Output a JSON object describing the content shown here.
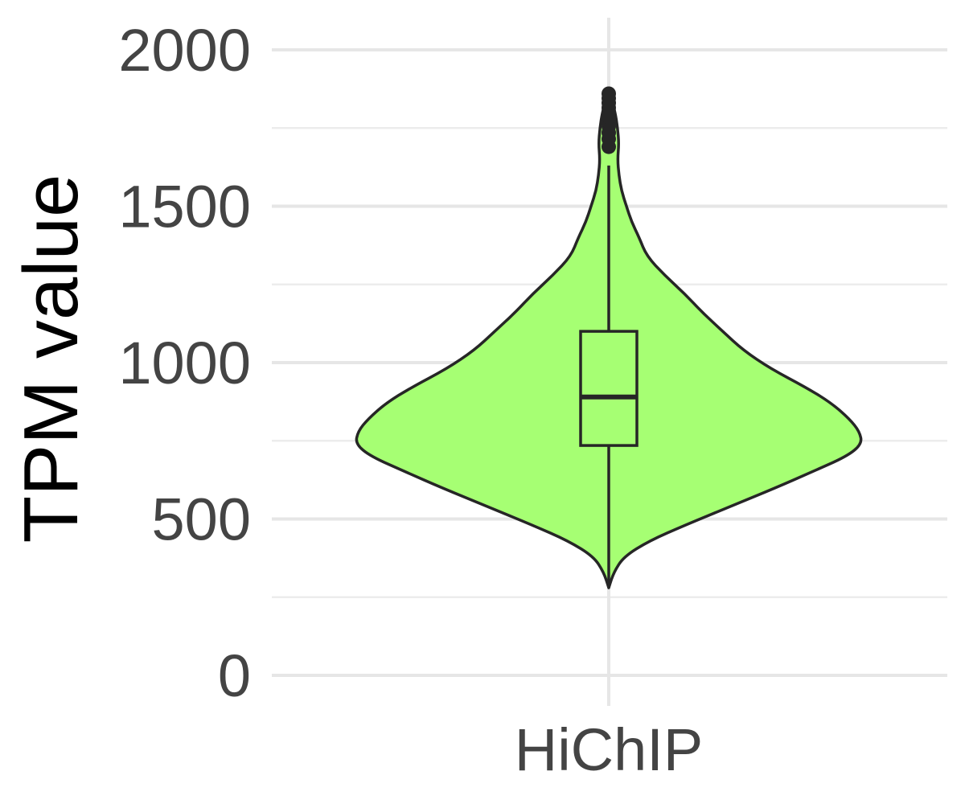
{
  "chart_data": {
    "type": "violin",
    "ylabel": "TPM value",
    "xlabel": "",
    "categories": [
      "HiChIP"
    ],
    "ylim": [
      -40,
      2100
    ],
    "y_ticks": [
      0,
      500,
      1000,
      1500,
      2000
    ],
    "y_tick_labels": [
      "0",
      "500",
      "1000",
      "1500",
      "2000"
    ],
    "grid": true,
    "legend": "none",
    "colors": {
      "fill": "#a6ff73",
      "outline": "#262626",
      "grid": "#e6e6e6"
    },
    "series": [
      {
        "category": "HiChIP",
        "min": 280,
        "max": 1860,
        "box": {
          "lower_whisker": 280,
          "q1": 735,
          "median": 890,
          "q3": 1100,
          "upper_whisker": 1630
        },
        "outliers": [
          1690,
          1715,
          1735,
          1755,
          1770,
          1785,
          1800,
          1815,
          1830,
          1845,
          1860
        ],
        "density_profile": [
          [
            280,
            0.0
          ],
          [
            330,
            0.02
          ],
          [
            380,
            0.06
          ],
          [
            430,
            0.16
          ],
          [
            480,
            0.3
          ],
          [
            540,
            0.48
          ],
          [
            600,
            0.66
          ],
          [
            650,
            0.8
          ],
          [
            700,
            0.94
          ],
          [
            740,
            1.0
          ],
          [
            780,
            0.99
          ],
          [
            820,
            0.95
          ],
          [
            870,
            0.88
          ],
          [
            920,
            0.78
          ],
          [
            980,
            0.64
          ],
          [
            1040,
            0.53
          ],
          [
            1100,
            0.45
          ],
          [
            1160,
            0.37
          ],
          [
            1220,
            0.3
          ],
          [
            1280,
            0.22
          ],
          [
            1340,
            0.15
          ],
          [
            1400,
            0.12
          ],
          [
            1450,
            0.09
          ],
          [
            1500,
            0.07
          ],
          [
            1550,
            0.05
          ],
          [
            1600,
            0.04
          ],
          [
            1650,
            0.035
          ],
          [
            1700,
            0.04
          ],
          [
            1750,
            0.035
          ],
          [
            1800,
            0.025
          ],
          [
            1830,
            0.015
          ],
          [
            1860,
            0.0
          ]
        ]
      }
    ]
  }
}
